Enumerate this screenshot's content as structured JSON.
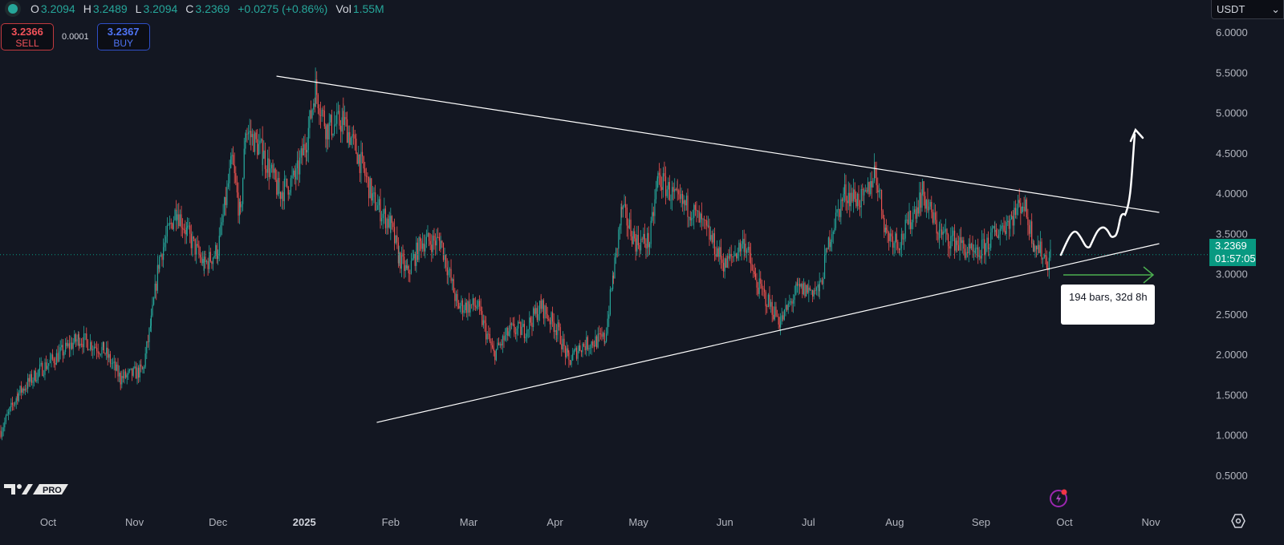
{
  "legend": {
    "o_label": "O",
    "o": "3.2094",
    "h_label": "H",
    "h": "3.2489",
    "l_label": "L",
    "l": "3.2094",
    "c_label": "C",
    "c": "3.2369",
    "change": "+0.0275 (+0.86%)",
    "vol_label": "Vol",
    "vol": "1.55M"
  },
  "trade": {
    "sell_price": "3.2366",
    "sell_label": "SELL",
    "spread": "0.0001",
    "buy_price": "3.2367",
    "buy_label": "BUY"
  },
  "currency": "USDT",
  "price_tag": {
    "price": "3.2369",
    "countdown": "01:57:05"
  },
  "date_range_label": "194 bars, 32d 8h",
  "logo_text": "PRO",
  "colors": {
    "background": "#131722",
    "up": "#26a69a",
    "down": "#ef5350",
    "price_line": "#089981",
    "trendline": "#ffffff",
    "range_arrow": "#4caf50",
    "text": "#b2b5be"
  },
  "icons": {
    "status": "green-dot-icon",
    "bolt": "lightning-icon",
    "settings": "hexagon-gear-icon",
    "dropdown": "chevron-down-icon"
  },
  "chart_data": {
    "type": "candlestick",
    "ylim": [
      0.3,
      6.3
    ],
    "y_ticks": [
      "6.0000",
      "5.5000",
      "5.0000",
      "4.5000",
      "4.0000",
      "3.5000",
      "3.0000",
      "2.5000",
      "2.0000",
      "1.5000",
      "1.0000",
      "0.5000"
    ],
    "x_ticks": [
      {
        "label": "Oct",
        "date": "2024-10-01"
      },
      {
        "label": "Nov",
        "date": "2024-11-01"
      },
      {
        "label": "Dec",
        "date": "2024-12-01"
      },
      {
        "label": "2025",
        "date": "2025-01-01"
      },
      {
        "label": "Feb",
        "date": "2025-02-01"
      },
      {
        "label": "Mar",
        "date": "2025-03-01"
      },
      {
        "label": "Apr",
        "date": "2025-04-01"
      },
      {
        "label": "May",
        "date": "2025-05-01"
      },
      {
        "label": "Jun",
        "date": "2025-06-01"
      },
      {
        "label": "Jul",
        "date": "2025-07-01"
      },
      {
        "label": "Aug",
        "date": "2025-08-01"
      },
      {
        "label": "Sep",
        "date": "2025-09-01"
      },
      {
        "label": "Oct",
        "date": "2025-10-01"
      },
      {
        "label": "Nov",
        "date": "2025-11-01"
      }
    ],
    "price_path": [
      [
        "2024-09-14",
        1.05
      ],
      [
        "2024-09-20",
        1.5
      ],
      [
        "2024-09-28",
        1.8
      ],
      [
        "2024-10-12",
        2.2
      ],
      [
        "2024-10-21",
        2.05
      ],
      [
        "2024-10-27",
        1.7
      ],
      [
        "2024-11-04",
        1.8
      ],
      [
        "2024-11-07",
        2.4
      ],
      [
        "2024-11-10",
        3.2
      ],
      [
        "2024-11-16",
        3.8
      ],
      [
        "2024-11-20",
        3.5
      ],
      [
        "2024-11-26",
        3.1
      ],
      [
        "2024-12-01",
        3.3
      ],
      [
        "2024-12-06",
        4.4
      ],
      [
        "2024-12-09",
        3.7
      ],
      [
        "2024-12-11",
        4.8
      ],
      [
        "2024-12-17",
        4.5
      ],
      [
        "2024-12-23",
        4.0
      ],
      [
        "2024-12-29",
        4.2
      ],
      [
        "2025-01-02",
        4.7
      ],
      [
        "2025-01-05",
        5.3
      ],
      [
        "2025-01-09",
        4.8
      ],
      [
        "2025-01-15",
        4.9
      ],
      [
        "2025-01-20",
        4.5
      ],
      [
        "2025-01-26",
        3.9
      ],
      [
        "2025-02-01",
        3.6
      ],
      [
        "2025-02-04",
        3.2
      ],
      [
        "2025-02-07",
        3.0
      ],
      [
        "2025-02-12",
        3.4
      ],
      [
        "2025-02-19",
        3.4
      ],
      [
        "2025-02-25",
        2.6
      ],
      [
        "2025-03-04",
        2.6
      ],
      [
        "2025-03-10",
        2.0
      ],
      [
        "2025-03-16",
        2.3
      ],
      [
        "2025-03-21",
        2.3
      ],
      [
        "2025-03-27",
        2.6
      ],
      [
        "2025-04-02",
        2.3
      ],
      [
        "2025-04-06",
        1.9
      ],
      [
        "2025-04-10",
        2.1
      ],
      [
        "2025-04-19",
        2.2
      ],
      [
        "2025-04-22",
        3.0
      ],
      [
        "2025-04-25",
        3.8
      ],
      [
        "2025-04-30",
        3.4
      ],
      [
        "2025-05-05",
        3.4
      ],
      [
        "2025-05-08",
        4.2
      ],
      [
        "2025-05-15",
        3.9
      ],
      [
        "2025-05-20",
        3.8
      ],
      [
        "2025-05-26",
        3.5
      ],
      [
        "2025-06-01",
        3.1
      ],
      [
        "2025-06-08",
        3.4
      ],
      [
        "2025-06-12",
        2.9
      ],
      [
        "2025-06-21",
        2.4
      ],
      [
        "2025-06-27",
        2.8
      ],
      [
        "2025-07-05",
        2.8
      ],
      [
        "2025-07-09",
        3.5
      ],
      [
        "2025-07-14",
        4.0
      ],
      [
        "2025-07-21",
        3.9
      ],
      [
        "2025-07-25",
        4.3
      ],
      [
        "2025-07-29",
        3.5
      ],
      [
        "2025-08-03",
        3.4
      ],
      [
        "2025-08-11",
        4.0
      ],
      [
        "2025-08-17",
        3.5
      ],
      [
        "2025-08-23",
        3.4
      ],
      [
        "2025-08-30",
        3.2
      ],
      [
        "2025-09-06",
        3.5
      ],
      [
        "2025-09-12",
        3.7
      ],
      [
        "2025-09-16",
        3.9
      ],
      [
        "2025-09-20",
        3.4
      ],
      [
        "2025-09-25",
        3.15
      ],
      [
        "2025-09-26",
        3.2369
      ]
    ],
    "last_price": 3.2369,
    "trendlines": [
      {
        "from": [
          "2024-12-22",
          5.453
        ],
        "to": [
          "2025-11-04",
          3.761
        ]
      },
      {
        "from": [
          "2025-01-27",
          1.154
        ],
        "to": [
          "2025-11-04",
          3.373
        ]
      }
    ]
  }
}
